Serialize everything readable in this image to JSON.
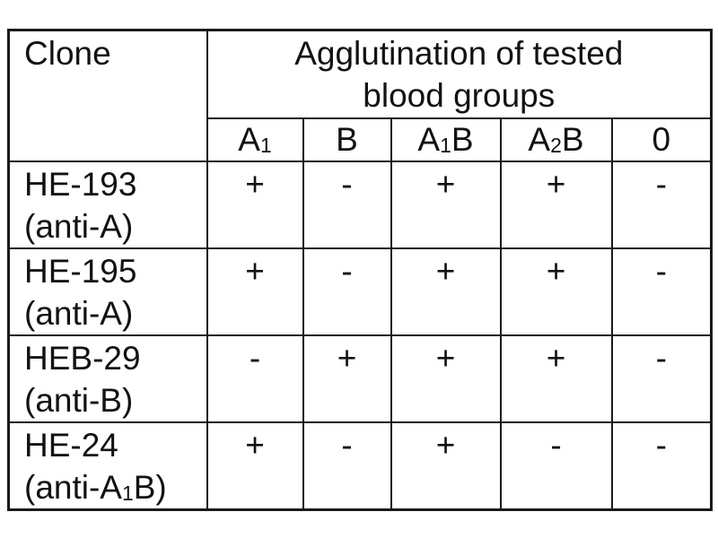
{
  "chart_data": {
    "type": "table",
    "corner_header": "Clone",
    "group_header_line1": "Agglutination of tested",
    "group_header_line2": "blood groups",
    "columns": [
      "A₁",
      "B",
      "A₁B",
      "A₂B",
      "0"
    ],
    "rows": [
      {
        "clone": "HE-193",
        "antibody": "(anti-A)",
        "values": [
          "+",
          "-",
          "+",
          "+",
          "-"
        ]
      },
      {
        "clone": "HE-195",
        "antibody": "(anti-A)",
        "values": [
          "+",
          "-",
          "+",
          "+",
          "-"
        ]
      },
      {
        "clone": "HEB-29",
        "antibody": "(anti-B)",
        "values": [
          "-",
          "+",
          "+",
          "+",
          "-"
        ]
      },
      {
        "clone": "HE-24",
        "antibody": "(anti-A₁B)",
        "values": [
          "+",
          "-",
          "+",
          "-",
          "-"
        ]
      }
    ]
  },
  "colors": {
    "background": "#ffffff",
    "border": "#1a1a1a",
    "text": "#121212"
  }
}
